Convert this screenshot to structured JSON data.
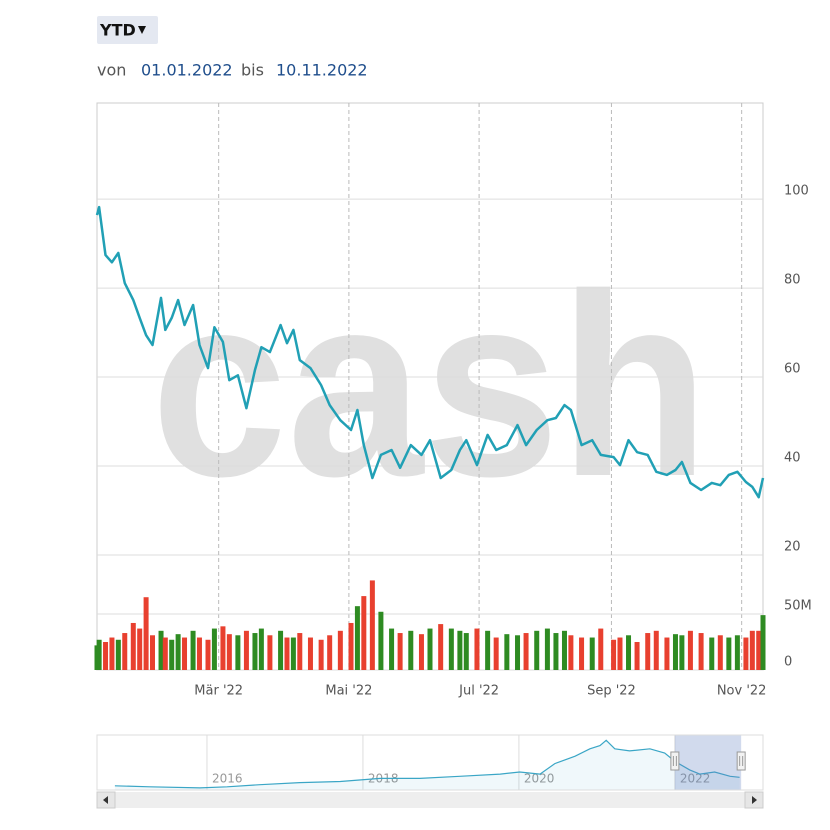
{
  "controls": {
    "range_button": "YTD",
    "from_label": "von",
    "from_date": "01.01.2022",
    "to_label": "bis",
    "to_date": "10.11.2022"
  },
  "chart_data": [
    {
      "type": "line",
      "watermark": "cash",
      "color": "#21a0b5",
      "grid": true,
      "x": [
        3,
        4,
        7,
        10,
        13,
        16,
        20,
        23,
        26,
        29,
        33,
        35,
        38,
        41,
        44,
        48,
        51,
        55,
        58,
        62,
        65,
        69,
        73,
        77,
        80,
        84,
        89,
        92,
        95,
        98,
        103,
        108,
        112,
        117,
        122,
        125,
        128,
        132,
        136,
        141,
        145,
        150,
        155,
        159,
        164,
        169,
        173,
        176,
        181,
        186,
        190,
        195,
        200,
        204,
        209,
        214,
        218,
        222,
        225,
        230,
        235,
        239,
        245,
        248,
        252,
        256,
        261,
        265,
        270,
        274,
        277,
        281,
        286,
        291,
        295,
        299,
        303,
        307,
        310,
        313,
        315
      ],
      "values": [
        96.4,
        98.2,
        87.4,
        85.8,
        87.9,
        81.1,
        77.3,
        73.3,
        69.4,
        67.2,
        77.8,
        70.6,
        73.3,
        77.3,
        71.7,
        76.2,
        67.2,
        62.0,
        71.2,
        67.9,
        59.3,
        60.4,
        53.0,
        61.6,
        66.7,
        65.6,
        71.7,
        67.6,
        70.6,
        63.8,
        62.0,
        58.2,
        53.7,
        50.3,
        48.1,
        52.6,
        44.7,
        37.3,
        42.5,
        43.6,
        39.6,
        44.7,
        42.5,
        45.8,
        37.3,
        39.1,
        43.6,
        45.8,
        40.2,
        47.0,
        43.6,
        44.7,
        49.2,
        44.7,
        48.1,
        50.3,
        50.8,
        53.7,
        52.6,
        44.7,
        45.8,
        42.5,
        42.0,
        40.2,
        45.8,
        43.1,
        42.5,
        38.7,
        38.0,
        39.1,
        40.9,
        36.2,
        34.6,
        36.2,
        35.7,
        38.0,
        38.7,
        36.4,
        35.3,
        33.0,
        37.3
      ],
      "xlim": [
        3,
        315
      ],
      "xticks": [
        {
          "value": 60,
          "label": "Mär '22"
        },
        {
          "value": 121,
          "label": "Mai '22"
        },
        {
          "value": 182,
          "label": "Jul '22"
        },
        {
          "value": 244,
          "label": "Sep '22"
        },
        {
          "value": 305,
          "label": "Nov '22"
        }
      ],
      "ylim": [
        20,
        121.6
      ],
      "yticks": [
        20,
        40,
        60,
        80,
        100
      ]
    },
    {
      "type": "bar",
      "up_color": "#2e8b22",
      "down_color": "#e8402f",
      "x": [
        3,
        4,
        7,
        10,
        13,
        16,
        20,
        23,
        26,
        29,
        33,
        35,
        38,
        41,
        44,
        48,
        51,
        55,
        58,
        62,
        65,
        69,
        73,
        77,
        80,
        84,
        89,
        92,
        95,
        98,
        103,
        108,
        112,
        117,
        122,
        125,
        128,
        132,
        136,
        141,
        145,
        150,
        155,
        159,
        164,
        169,
        173,
        176,
        181,
        186,
        190,
        195,
        200,
        204,
        209,
        214,
        218,
        222,
        225,
        230,
        235,
        239,
        245,
        248,
        252,
        256,
        261,
        265,
        270,
        274,
        277,
        281,
        286,
        291,
        295,
        299,
        303,
        307,
        310,
        313,
        315
      ],
      "values": [
        22,
        27,
        25,
        29,
        27,
        33,
        42,
        37,
        65,
        31,
        35,
        29,
        27,
        32,
        29,
        35,
        29,
        27,
        37,
        39,
        32,
        31,
        35,
        33,
        37,
        31,
        35,
        29,
        29,
        33,
        29,
        27,
        31,
        35,
        42,
        57,
        66,
        80,
        52,
        37,
        33,
        35,
        32,
        37,
        41,
        37,
        35,
        33,
        37,
        35,
        29,
        32,
        31,
        33,
        35,
        37,
        33,
        35,
        31,
        29,
        29,
        37,
        27,
        29,
        31,
        25,
        33,
        35,
        29,
        32,
        31,
        35,
        33,
        29,
        31,
        29,
        31,
        29,
        35,
        35,
        49
      ],
      "ylim": [
        0,
        102.7
      ],
      "yticks": [
        0,
        {
          "value": 50,
          "label": "50M"
        }
      ]
    },
    {
      "type": "area",
      "color": "#3aa6c6",
      "x": [
        2014.82,
        2015.27,
        2015.91,
        2016.26,
        2016.68,
        2017.19,
        2017.71,
        2018.22,
        2018.73,
        2019.24,
        2019.76,
        2020.01,
        2020.27,
        2020.46,
        2020.72,
        2020.91,
        2021.04,
        2021.12,
        2021.23,
        2021.42,
        2021.68,
        2021.87,
        2022.0,
        2022.19,
        2022.32,
        2022.51,
        2022.71,
        2022.83
      ],
      "values": [
        12,
        9,
        6,
        9,
        15,
        21,
        24,
        33,
        33,
        39,
        45,
        51,
        45,
        75,
        96,
        117,
        126,
        141,
        117,
        111,
        117,
        105,
        81,
        57,
        45,
        51,
        39,
        36
      ],
      "xlim": [
        2014.59,
        2023.13
      ],
      "ylim": [
        0,
        156
      ],
      "xticks": [
        2016,
        2018,
        2020,
        2022
      ],
      "selection": [
        2022.0,
        2022.85
      ]
    }
  ]
}
